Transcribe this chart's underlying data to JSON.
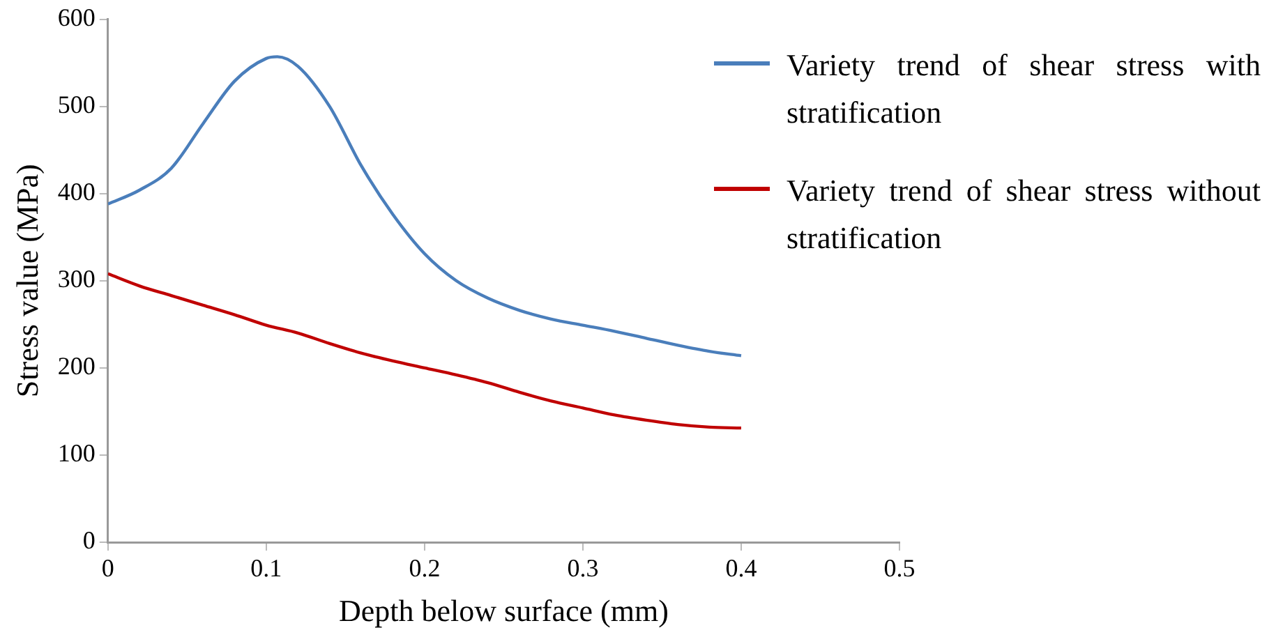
{
  "chart_data": {
    "type": "line",
    "xlabel": "Depth below surface (mm)",
    "ylabel": "Stress value (MPa)",
    "xlim": [
      0,
      0.5
    ],
    "xticks": [
      0,
      0.1,
      0.2,
      0.3,
      0.4,
      0.5
    ],
    "ylim": [
      0,
      600
    ],
    "yticks": [
      0,
      100,
      200,
      300,
      400,
      500,
      600
    ],
    "grid": false,
    "legend": "right",
    "marker": "none",
    "line_style": "solid",
    "series": [
      {
        "name": "Variety trend of shear stress with stratification",
        "color": "#4a7ebb",
        "x": [
          0,
          0.02,
          0.04,
          0.06,
          0.08,
          0.1,
          0.107,
          0.12,
          0.14,
          0.16,
          0.18,
          0.2,
          0.22,
          0.24,
          0.26,
          0.28,
          0.3,
          0.32,
          0.34,
          0.36,
          0.38,
          0.4
        ],
        "values": [
          388,
          404,
          429,
          480,
          529,
          555,
          557,
          546,
          500,
          432,
          376,
          331,
          300,
          280,
          266,
          256,
          249,
          242,
          234,
          226,
          219,
          214
        ]
      },
      {
        "name": "Variety trend of shear stress without stratification",
        "color": "#c00000",
        "x": [
          0,
          0.02,
          0.04,
          0.06,
          0.08,
          0.1,
          0.12,
          0.14,
          0.16,
          0.18,
          0.2,
          0.22,
          0.24,
          0.26,
          0.28,
          0.3,
          0.32,
          0.34,
          0.36,
          0.38,
          0.4
        ],
        "values": [
          308,
          294,
          283,
          272,
          261,
          249,
          240,
          228,
          217,
          208,
          200,
          192,
          183,
          172,
          162,
          154,
          146,
          140,
          135,
          132,
          131
        ]
      }
    ]
  }
}
